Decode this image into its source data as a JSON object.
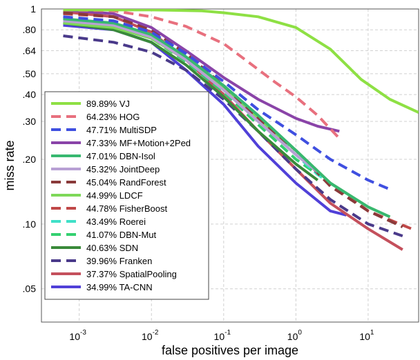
{
  "chart_data": {
    "type": "line",
    "title": "",
    "xlabel": "false positives per image",
    "ylabel": "miss rate",
    "xscale": "log",
    "yscale": "log",
    "xlim": [
      0.0003,
      50
    ],
    "ylim": [
      0.035,
      1.0
    ],
    "grid": true,
    "legend_position": "left-bottom",
    "x_ticks": [
      {
        "value": 0.001,
        "base": "10",
        "exp": "-3"
      },
      {
        "value": 0.01,
        "base": "10",
        "exp": "-2"
      },
      {
        "value": 0.1,
        "base": "10",
        "exp": "-1"
      },
      {
        "value": 1,
        "base": "10",
        "exp": "0"
      },
      {
        "value": 10,
        "base": "10",
        "exp": "1"
      }
    ],
    "y_ticks": [
      {
        "value": 1.0,
        "label": "1"
      },
      {
        "value": 0.8,
        "label": ".80"
      },
      {
        "value": 0.64,
        "label": ".64"
      },
      {
        "value": 0.5,
        "label": ".50"
      },
      {
        "value": 0.4,
        "label": ".40"
      },
      {
        "value": 0.3,
        "label": ".30"
      },
      {
        "value": 0.2,
        "label": ".20"
      },
      {
        "value": 0.1,
        "label": ".10"
      },
      {
        "value": 0.05,
        "label": ".05"
      }
    ],
    "series": [
      {
        "name": "89.89% VJ",
        "color": "#8ee044",
        "dash": "solid",
        "points": [
          [
            0.0006,
            0.99
          ],
          [
            0.01,
            0.99
          ],
          [
            0.05,
            0.98
          ],
          [
            0.1,
            0.96
          ],
          [
            0.3,
            0.92
          ],
          [
            1,
            0.82
          ],
          [
            3,
            0.65
          ],
          [
            8,
            0.47
          ],
          [
            20,
            0.38
          ],
          [
            50,
            0.33
          ]
        ]
      },
      {
        "name": "64.23% HOG",
        "color": "#e8707e",
        "dash": "dashed",
        "points": [
          [
            0.0006,
            0.99
          ],
          [
            0.003,
            0.98
          ],
          [
            0.01,
            0.92
          ],
          [
            0.03,
            0.83
          ],
          [
            0.1,
            0.69
          ],
          [
            0.2,
            0.58
          ],
          [
            0.5,
            0.46
          ],
          [
            1,
            0.39
          ],
          [
            2,
            0.32
          ],
          [
            4,
            0.25
          ]
        ]
      },
      {
        "name": "47.71% MultiSDP",
        "color": "#3f4fe0",
        "dash": "dashed",
        "points": [
          [
            0.0006,
            0.92
          ],
          [
            0.003,
            0.88
          ],
          [
            0.01,
            0.78
          ],
          [
            0.03,
            0.62
          ],
          [
            0.1,
            0.46
          ],
          [
            0.3,
            0.34
          ],
          [
            1,
            0.26
          ],
          [
            3,
            0.2
          ],
          [
            10,
            0.16
          ],
          [
            20,
            0.145
          ]
        ]
      },
      {
        "name": "47.33% MF+Motion+2Ped",
        "color": "#8a44a8",
        "dash": "solid",
        "points": [
          [
            0.0006,
            0.99
          ],
          [
            0.003,
            0.95
          ],
          [
            0.01,
            0.82
          ],
          [
            0.03,
            0.64
          ],
          [
            0.1,
            0.48
          ],
          [
            0.3,
            0.38
          ],
          [
            1,
            0.31
          ],
          [
            2,
            0.285
          ],
          [
            4,
            0.27
          ]
        ]
      },
      {
        "name": "47.01% DBN-Isol",
        "color": "#38b870",
        "dash": "solid",
        "points": [
          [
            0.0006,
            0.9
          ],
          [
            0.003,
            0.86
          ],
          [
            0.01,
            0.76
          ],
          [
            0.03,
            0.6
          ],
          [
            0.1,
            0.44
          ],
          [
            0.3,
            0.32
          ],
          [
            1,
            0.22
          ],
          [
            3,
            0.155
          ],
          [
            10,
            0.12
          ],
          [
            20,
            0.108
          ]
        ]
      },
      {
        "name": "45.32% JointDeep",
        "color": "#b8a0d4",
        "dash": "solid",
        "points": [
          [
            0.0006,
            0.88
          ],
          [
            0.003,
            0.84
          ],
          [
            0.01,
            0.74
          ],
          [
            0.03,
            0.58
          ],
          [
            0.1,
            0.42
          ],
          [
            0.3,
            0.3
          ],
          [
            1,
            0.21
          ],
          [
            2,
            0.175
          ]
        ]
      },
      {
        "name": "45.04% RandForest",
        "color": "#8a3a3a",
        "dash": "dashed",
        "points": [
          [
            0.0006,
            0.96
          ],
          [
            0.003,
            0.92
          ],
          [
            0.01,
            0.8
          ],
          [
            0.03,
            0.62
          ],
          [
            0.1,
            0.44
          ],
          [
            0.3,
            0.31
          ],
          [
            1,
            0.22
          ],
          [
            3,
            0.15
          ],
          [
            10,
            0.115
          ],
          [
            30,
            0.097
          ]
        ]
      },
      {
        "name": "44.99% LDCF",
        "color": "#7ed858",
        "dash": "solid",
        "points": [
          [
            0.0006,
            0.86
          ],
          [
            0.003,
            0.82
          ],
          [
            0.01,
            0.73
          ],
          [
            0.03,
            0.58
          ],
          [
            0.1,
            0.43
          ],
          [
            0.3,
            0.31
          ],
          [
            1,
            0.22
          ],
          [
            3,
            0.155
          ],
          [
            10,
            0.12
          ],
          [
            20,
            0.108
          ]
        ]
      },
      {
        "name": "44.78% FisherBoost",
        "color": "#c04848",
        "dash": "dashed",
        "points": [
          [
            0.0006,
            0.95
          ],
          [
            0.003,
            0.92
          ],
          [
            0.01,
            0.8
          ],
          [
            0.03,
            0.62
          ],
          [
            0.1,
            0.44
          ],
          [
            0.3,
            0.31
          ],
          [
            1,
            0.22
          ],
          [
            3,
            0.155
          ],
          [
            10,
            0.115
          ],
          [
            40,
            0.095
          ]
        ]
      },
      {
        "name": "43.49% Roerei",
        "color": "#40e0c8",
        "dash": "dashed",
        "points": [
          [
            0.0006,
            0.91
          ],
          [
            0.003,
            0.87
          ],
          [
            0.01,
            0.76
          ],
          [
            0.03,
            0.6
          ],
          [
            0.1,
            0.43
          ],
          [
            0.3,
            0.31
          ],
          [
            1,
            0.21
          ],
          [
            2,
            0.17
          ],
          [
            4,
            0.145
          ]
        ]
      },
      {
        "name": "41.07% DBN-Mut",
        "color": "#34d070",
        "dash": "dashed",
        "points": [
          [
            0.0006,
            0.87
          ],
          [
            0.003,
            0.83
          ],
          [
            0.01,
            0.73
          ],
          [
            0.03,
            0.57
          ],
          [
            0.1,
            0.41
          ],
          [
            0.3,
            0.29
          ],
          [
            1,
            0.2
          ],
          [
            2,
            0.17
          ]
        ]
      },
      {
        "name": "40.63% SDN",
        "color": "#3a8a3a",
        "dash": "solid",
        "points": [
          [
            0.0006,
            0.86
          ],
          [
            0.003,
            0.8
          ],
          [
            0.01,
            0.7
          ],
          [
            0.03,
            0.55
          ],
          [
            0.1,
            0.39
          ],
          [
            0.3,
            0.27
          ],
          [
            1,
            0.19
          ],
          [
            2,
            0.16
          ]
        ]
      },
      {
        "name": "39.96% Franken",
        "color": "#4a3a8a",
        "dash": "dashed",
        "points": [
          [
            0.0006,
            0.75
          ],
          [
            0.003,
            0.7
          ],
          [
            0.01,
            0.63
          ],
          [
            0.03,
            0.52
          ],
          [
            0.1,
            0.38
          ],
          [
            0.3,
            0.27
          ],
          [
            1,
            0.18
          ],
          [
            3,
            0.13
          ],
          [
            10,
            0.1
          ],
          [
            30,
            0.088
          ]
        ]
      },
      {
        "name": "37.37% SpatialPooling",
        "color": "#c4505c",
        "dash": "solid",
        "points": [
          [
            0.0006,
            0.97
          ],
          [
            0.003,
            0.92
          ],
          [
            0.01,
            0.78
          ],
          [
            0.03,
            0.58
          ],
          [
            0.1,
            0.4
          ],
          [
            0.3,
            0.27
          ],
          [
            1,
            0.18
          ],
          [
            3,
            0.125
          ],
          [
            10,
            0.095
          ],
          [
            30,
            0.076
          ]
        ]
      },
      {
        "name": "34.99% TA-CNN",
        "color": "#5040d8",
        "dash": "solid",
        "points": [
          [
            0.0006,
            0.84
          ],
          [
            0.003,
            0.8
          ],
          [
            0.01,
            0.7
          ],
          [
            0.03,
            0.52
          ],
          [
            0.1,
            0.36
          ],
          [
            0.3,
            0.23
          ],
          [
            1,
            0.155
          ],
          [
            3,
            0.115
          ],
          [
            5,
            0.11
          ]
        ]
      }
    ]
  }
}
